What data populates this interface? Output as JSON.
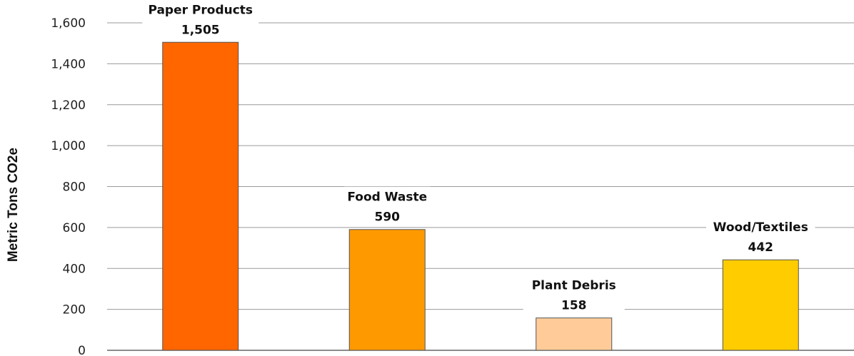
{
  "chart_data": {
    "type": "bar",
    "categories": [
      "Paper Products",
      "Food Waste",
      "Plant Debris",
      "Wood/Textiles"
    ],
    "values": [
      1505,
      590,
      158,
      442
    ],
    "value_labels": [
      "1,505",
      "590",
      "158",
      "442"
    ],
    "colors": [
      "#FF6600",
      "#FF9900",
      "#FFCC99",
      "#FFCC00"
    ],
    "title": "",
    "xlabel": "",
    "ylabel": "Metric Tons CO2e",
    "ylim": [
      0,
      1600
    ],
    "yticks": [
      0,
      200,
      400,
      600,
      800,
      1000,
      1200,
      1400,
      1600
    ],
    "ytick_labels": [
      "0",
      "200",
      "400",
      "600",
      "800",
      "1,000",
      "1,200",
      "1,400",
      "1,600"
    ],
    "grid": true,
    "legend": "none"
  }
}
